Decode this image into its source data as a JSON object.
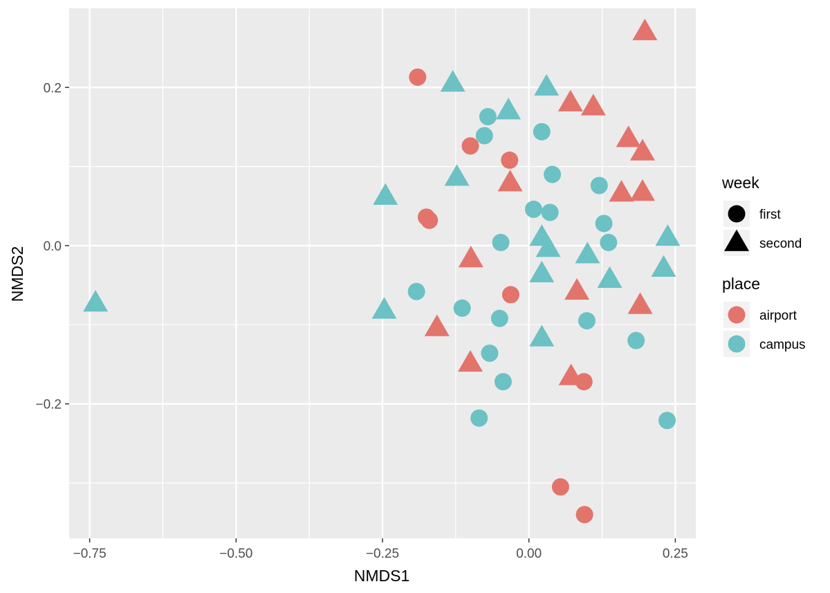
{
  "chart_data": {
    "type": "scatter",
    "xlabel": "NMDS1",
    "ylabel": "NMDS2",
    "xlim": [
      -0.785,
      0.285
    ],
    "ylim": [
      -0.37,
      0.3
    ],
    "x_ticks": [
      -0.75,
      -0.5,
      -0.25,
      0.0,
      0.25
    ],
    "x_tick_labels": [
      "−0.75",
      "−0.50",
      "−0.25",
      "0.00",
      "0.25"
    ],
    "y_ticks": [
      -0.2,
      0.0,
      0.2
    ],
    "y_tick_labels": [
      "−0.2",
      "0.0",
      "0.2"
    ],
    "grid": true,
    "background": "#ebebeb",
    "legend_position": "right",
    "legends": [
      {
        "title": "week",
        "aesthetic": "shape",
        "entries": [
          {
            "label": "first",
            "shape": "circle"
          },
          {
            "label": "second",
            "shape": "triangle"
          }
        ]
      },
      {
        "title": "place",
        "aesthetic": "color",
        "entries": [
          {
            "label": "airport",
            "color": "#e2746c"
          },
          {
            "label": "campus",
            "color": "#6cc1c4"
          }
        ]
      }
    ],
    "points": [
      {
        "x": -0.19,
        "y": 0.213,
        "place": "airport",
        "week": "first"
      },
      {
        "x": -0.1,
        "y": 0.126,
        "place": "airport",
        "week": "first"
      },
      {
        "x": -0.033,
        "y": 0.108,
        "place": "airport",
        "week": "first"
      },
      {
        "x": -0.175,
        "y": 0.036,
        "place": "airport",
        "week": "first"
      },
      {
        "x": -0.17,
        "y": 0.032,
        "place": "airport",
        "week": "first"
      },
      {
        "x": -0.031,
        "y": -0.062,
        "place": "airport",
        "week": "first"
      },
      {
        "x": 0.094,
        "y": -0.172,
        "place": "airport",
        "week": "first"
      },
      {
        "x": 0.054,
        "y": -0.305,
        "place": "airport",
        "week": "first"
      },
      {
        "x": 0.095,
        "y": -0.34,
        "place": "airport",
        "week": "first"
      },
      {
        "x": 0.198,
        "y": 0.27,
        "place": "airport",
        "week": "second"
      },
      {
        "x": 0.071,
        "y": 0.18,
        "place": "airport",
        "week": "second"
      },
      {
        "x": 0.11,
        "y": 0.175,
        "place": "airport",
        "week": "second"
      },
      {
        "x": 0.17,
        "y": 0.135,
        "place": "airport",
        "week": "second"
      },
      {
        "x": 0.194,
        "y": 0.118,
        "place": "airport",
        "week": "second"
      },
      {
        "x": -0.032,
        "y": 0.079,
        "place": "airport",
        "week": "second"
      },
      {
        "x": 0.158,
        "y": 0.066,
        "place": "airport",
        "week": "second"
      },
      {
        "x": 0.194,
        "y": 0.067,
        "place": "airport",
        "week": "second"
      },
      {
        "x": -0.099,
        "y": -0.017,
        "place": "airport",
        "week": "second"
      },
      {
        "x": 0.082,
        "y": -0.058,
        "place": "airport",
        "week": "second"
      },
      {
        "x": 0.19,
        "y": -0.076,
        "place": "airport",
        "week": "second"
      },
      {
        "x": -0.157,
        "y": -0.104,
        "place": "airport",
        "week": "second"
      },
      {
        "x": -0.1,
        "y": -0.149,
        "place": "airport",
        "week": "second"
      },
      {
        "x": 0.072,
        "y": -0.166,
        "place": "airport",
        "week": "second"
      },
      {
        "x": -0.07,
        "y": 0.163,
        "place": "campus",
        "week": "first"
      },
      {
        "x": 0.022,
        "y": 0.144,
        "place": "campus",
        "week": "first"
      },
      {
        "x": -0.076,
        "y": 0.139,
        "place": "campus",
        "week": "first"
      },
      {
        "x": 0.04,
        "y": 0.09,
        "place": "campus",
        "week": "first"
      },
      {
        "x": 0.12,
        "y": 0.076,
        "place": "campus",
        "week": "first"
      },
      {
        "x": 0.008,
        "y": 0.046,
        "place": "campus",
        "week": "first"
      },
      {
        "x": 0.036,
        "y": 0.042,
        "place": "campus",
        "week": "first"
      },
      {
        "x": 0.128,
        "y": 0.028,
        "place": "campus",
        "week": "first"
      },
      {
        "x": -0.048,
        "y": 0.004,
        "place": "campus",
        "week": "first"
      },
      {
        "x": 0.136,
        "y": 0.004,
        "place": "campus",
        "week": "first"
      },
      {
        "x": -0.192,
        "y": -0.058,
        "place": "campus",
        "week": "first"
      },
      {
        "x": -0.114,
        "y": -0.079,
        "place": "campus",
        "week": "first"
      },
      {
        "x": -0.05,
        "y": -0.092,
        "place": "campus",
        "week": "first"
      },
      {
        "x": 0.099,
        "y": -0.095,
        "place": "campus",
        "week": "first"
      },
      {
        "x": 0.183,
        "y": -0.12,
        "place": "campus",
        "week": "first"
      },
      {
        "x": -0.067,
        "y": -0.136,
        "place": "campus",
        "week": "first"
      },
      {
        "x": -0.044,
        "y": -0.172,
        "place": "campus",
        "week": "first"
      },
      {
        "x": -0.085,
        "y": -0.218,
        "place": "campus",
        "week": "first"
      },
      {
        "x": 0.236,
        "y": -0.221,
        "place": "campus",
        "week": "first"
      },
      {
        "x": -0.13,
        "y": 0.205,
        "place": "campus",
        "week": "second"
      },
      {
        "x": 0.03,
        "y": 0.2,
        "place": "campus",
        "week": "second"
      },
      {
        "x": -0.035,
        "y": 0.17,
        "place": "campus",
        "week": "second"
      },
      {
        "x": -0.123,
        "y": 0.086,
        "place": "campus",
        "week": "second"
      },
      {
        "x": -0.245,
        "y": 0.062,
        "place": "campus",
        "week": "second"
      },
      {
        "x": 0.022,
        "y": 0.01,
        "place": "campus",
        "week": "second"
      },
      {
        "x": 0.237,
        "y": 0.01,
        "place": "campus",
        "week": "second"
      },
      {
        "x": 0.033,
        "y": -0.004,
        "place": "campus",
        "week": "second"
      },
      {
        "x": 0.1,
        "y": -0.012,
        "place": "campus",
        "week": "second"
      },
      {
        "x": 0.022,
        "y": -0.036,
        "place": "campus",
        "week": "second"
      },
      {
        "x": 0.138,
        "y": -0.043,
        "place": "campus",
        "week": "second"
      },
      {
        "x": 0.23,
        "y": -0.029,
        "place": "campus",
        "week": "second"
      },
      {
        "x": -0.74,
        "y": -0.073,
        "place": "campus",
        "week": "second"
      },
      {
        "x": -0.247,
        "y": -0.082,
        "place": "campus",
        "week": "second"
      },
      {
        "x": 0.022,
        "y": -0.117,
        "place": "campus",
        "week": "second"
      }
    ]
  }
}
